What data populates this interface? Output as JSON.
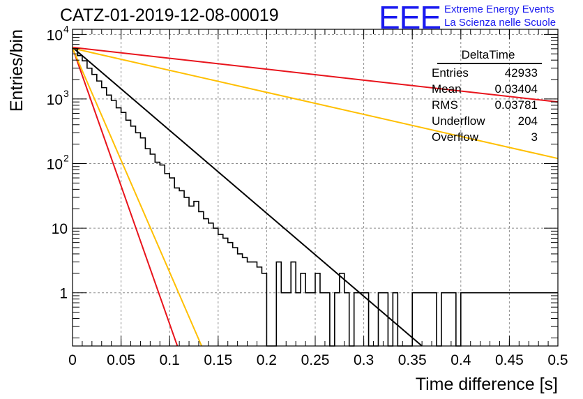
{
  "header": {
    "title": "CATZ-01-2019-12-08-00019",
    "logo_mark": "EEE",
    "logo_line1": "Extreme Energy Events",
    "logo_line2": "La Scienza nelle Scuole",
    "logo_color": "#1a1af0"
  },
  "stats": {
    "title": "DeltaTime",
    "rows": [
      {
        "label": "Entries",
        "value": "42933"
      },
      {
        "label": "Mean",
        "value": "0.03404"
      },
      {
        "label": "RMS",
        "value": "0.03781"
      },
      {
        "label": "Underflow",
        "value": "204"
      },
      {
        "label": "Overflow",
        "value": "3"
      }
    ]
  },
  "chart_data": {
    "type": "line",
    "title": "CATZ-01-2019-12-08-00019",
    "xlabel": "Time difference [s]",
    "ylabel": "Entries/bin",
    "xlim": [
      0,
      0.5
    ],
    "ylim": [
      0.15,
      12000
    ],
    "yscale": "log",
    "grid": true,
    "x_ticks": [
      0,
      0.05,
      0.1,
      0.15,
      0.2,
      0.25,
      0.3,
      0.35,
      0.4,
      0.45,
      0.5
    ],
    "x_tick_labels": [
      "0",
      "0.05",
      "0.1",
      "0.15",
      "0.2",
      "0.25",
      "0.3",
      "0.35",
      "0.4",
      "0.45",
      "0.5"
    ],
    "y_tick_labels": [
      {
        "value": 1,
        "base": "1",
        "exp": ""
      },
      {
        "value": 10,
        "base": "10",
        "exp": ""
      },
      {
        "value": 100,
        "base": "10",
        "exp": "2"
      },
      {
        "value": 1000,
        "base": "10",
        "exp": "3"
      },
      {
        "value": 10000,
        "base": "10",
        "exp": "4"
      }
    ],
    "histogram": {
      "name": "DeltaTime",
      "color": "#000000",
      "bin_width": 0.005,
      "values": [
        6000,
        4700,
        3900,
        3000,
        2400,
        1900,
        1500,
        1150,
        950,
        730,
        620,
        470,
        380,
        300,
        250,
        170,
        140,
        105,
        95,
        70,
        60,
        42,
        38,
        30,
        22,
        26,
        18,
        14,
        12,
        10,
        8,
        7,
        6,
        5,
        4,
        3.5,
        3,
        3,
        2.5,
        2,
        0,
        0,
        3,
        1,
        1,
        3,
        1,
        2,
        1,
        1,
        2,
        1,
        1,
        0,
        1,
        2,
        1,
        0,
        1,
        1,
        1,
        0,
        0,
        1,
        1,
        0,
        1,
        0,
        0,
        0,
        1,
        1,
        1,
        1,
        1,
        0,
        1,
        1,
        1,
        0,
        1,
        1,
        1,
        1,
        1,
        1,
        1,
        1,
        1,
        1,
        1,
        1,
        1,
        1,
        1,
        1,
        1,
        1,
        1,
        1
      ]
    },
    "fit_lines": [
      {
        "color": "#000000",
        "x": [
          0,
          0.36
        ],
        "y": [
          6300,
          0.15
        ]
      },
      {
        "color": "#e8141c",
        "x": [
          0,
          0.5
        ],
        "y": [
          6300,
          900
        ]
      },
      {
        "color": "#ffbf00",
        "x": [
          0,
          0.5
        ],
        "y": [
          6100,
          120
        ]
      },
      {
        "color": "#e8141c",
        "x": [
          0,
          0.108
        ],
        "y": [
          6200,
          0.15
        ]
      },
      {
        "color": "#ffbf00",
        "x": [
          0,
          0.133
        ],
        "y": [
          6100,
          0.15
        ]
      }
    ]
  }
}
